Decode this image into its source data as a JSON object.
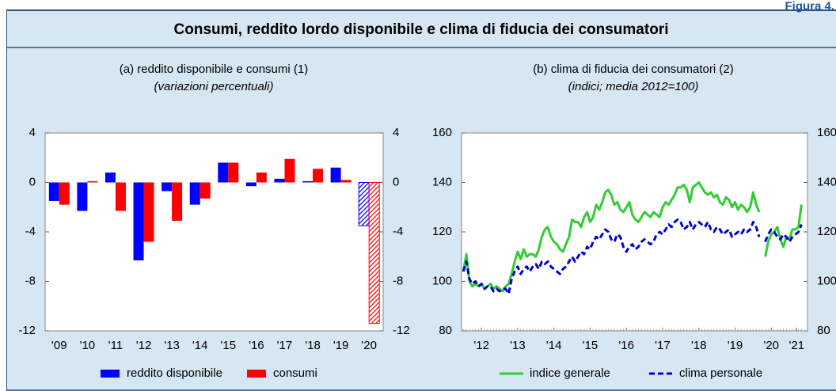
{
  "figure_label": "Figura 4.",
  "title": "Consumi, reddito lordo disponibile e clima di fiducia dei consumatori",
  "chart_data": [
    {
      "type": "bar",
      "title": "(a) reddito disponibile e consumi (1)",
      "subtitle": "(variazioni percentuali)",
      "categories": [
        "'09",
        "'10",
        "'11",
        "'12",
        "'13",
        "'14",
        "'15",
        "'16",
        "'17",
        "'18",
        "'19",
        "'20"
      ],
      "series": [
        {
          "name": "reddito disponibile",
          "color": "#0000ff",
          "values": [
            -1.5,
            -2.3,
            0.8,
            -6.3,
            -0.7,
            -1.8,
            1.6,
            -0.3,
            0.3,
            0.1,
            1.2,
            -3.5
          ],
          "hatch": [
            false,
            false,
            false,
            false,
            false,
            false,
            false,
            false,
            false,
            false,
            false,
            true
          ]
        },
        {
          "name": "consumi",
          "color": "#ff0000",
          "values": [
            -1.8,
            0.1,
            -2.3,
            -4.8,
            -3.1,
            -1.3,
            1.6,
            0.8,
            1.9,
            1.1,
            0.2,
            -11.4
          ],
          "hatch": [
            false,
            false,
            false,
            false,
            false,
            false,
            false,
            false,
            false,
            false,
            false,
            true
          ]
        }
      ],
      "ylim": [
        -12,
        4
      ],
      "yticks": [
        -12,
        -8,
        -4,
        0,
        4
      ],
      "y_right": true
    },
    {
      "type": "line",
      "title": "(b) clima di fiducia dei consumatori (2)",
      "subtitle": "(indici; media 2012=100)",
      "x": [
        2012,
        2012.083,
        2012.167,
        2012.25,
        2012.333,
        2012.417,
        2012.5,
        2012.583,
        2012.667,
        2012.75,
        2012.833,
        2012.917,
        2013,
        2013.083,
        2013.167,
        2013.25,
        2013.333,
        2013.417,
        2013.5,
        2013.583,
        2013.667,
        2013.75,
        2013.833,
        2013.917,
        2014,
        2014.083,
        2014.167,
        2014.25,
        2014.333,
        2014.417,
        2014.5,
        2014.583,
        2014.667,
        2014.75,
        2014.833,
        2014.917,
        2015,
        2015.083,
        2015.167,
        2015.25,
        2015.333,
        2015.417,
        2015.5,
        2015.583,
        2015.667,
        2015.75,
        2015.833,
        2015.917,
        2016,
        2016.083,
        2016.167,
        2016.25,
        2016.333,
        2016.417,
        2016.5,
        2016.583,
        2016.667,
        2016.75,
        2016.833,
        2016.917,
        2017,
        2017.083,
        2017.167,
        2017.25,
        2017.333,
        2017.417,
        2017.5,
        2017.583,
        2017.667,
        2017.75,
        2017.833,
        2017.917,
        2018,
        2018.083,
        2018.167,
        2018.25,
        2018.333,
        2018.417,
        2018.5,
        2018.583,
        2018.667,
        2018.75,
        2018.833,
        2018.917,
        2019,
        2019.083,
        2019.167,
        2019.25,
        2019.333,
        2019.417,
        2019.5,
        2019.583,
        2019.667,
        2019.75,
        2019.833,
        2019.917,
        2020,
        2020.083,
        2020.167,
        2020.25,
        2020.333,
        2020.417,
        2020.5,
        2020.583,
        2020.667,
        2020.75,
        2020.833,
        2020.917,
        2021,
        2021.083,
        2021.167,
        2021.25,
        2021.333
      ],
      "series": [
        {
          "name": "indice generale",
          "color": "#33cc33",
          "dash": false,
          "values": [
            104,
            111,
            100,
            98,
            99,
            98,
            99,
            97,
            98,
            99,
            97,
            98,
            97,
            96,
            98,
            99,
            103,
            108,
            112,
            109,
            113,
            110,
            111,
            111,
            110,
            113,
            118,
            121,
            122,
            118,
            116,
            115,
            113,
            112,
            115,
            118,
            125,
            124,
            124,
            122,
            126,
            128,
            124,
            126,
            131,
            129,
            132,
            136,
            137,
            135,
            131,
            132,
            129,
            128,
            130,
            132,
            127,
            125,
            124,
            126,
            128,
            127,
            126,
            128,
            127,
            126,
            130,
            132,
            131,
            133,
            135,
            138,
            138,
            139,
            137,
            132,
            138,
            139,
            140,
            138,
            136,
            135,
            136,
            134,
            135,
            132,
            131,
            134,
            133,
            130,
            132,
            129,
            131,
            130,
            128,
            130,
            136,
            131,
            128,
            null,
            110,
            116,
            119,
            120,
            122,
            117,
            114,
            118,
            117,
            121,
            121,
            122,
            131
          ]
        },
        {
          "name": "clima personale",
          "color": "#0000cc",
          "dash": true,
          "values": [
            104,
            108,
            101,
            99,
            100,
            98,
            99,
            97,
            98,
            98,
            96,
            97,
            96,
            97,
            97,
            95,
            101,
            104,
            106,
            103,
            105,
            106,
            104,
            106,
            107,
            105,
            108,
            107,
            108,
            106,
            105,
            104,
            103,
            105,
            106,
            108,
            110,
            108,
            110,
            112,
            111,
            114,
            113,
            116,
            118,
            117,
            119,
            121,
            120,
            117,
            116,
            119,
            118,
            114,
            112,
            114,
            115,
            113,
            114,
            116,
            117,
            116,
            115,
            116,
            119,
            120,
            119,
            121,
            123,
            122,
            124,
            125,
            124,
            121,
            122,
            124,
            121,
            123,
            124,
            123,
            122,
            124,
            121,
            120,
            122,
            121,
            119,
            120,
            121,
            118,
            119,
            120,
            119,
            121,
            120,
            121,
            124,
            122,
            118,
            null,
            116,
            119,
            121,
            120,
            118,
            117,
            119,
            118,
            116,
            118,
            119,
            120,
            123
          ]
        }
      ],
      "xlim": [
        2011.95,
        2021.5
      ],
      "xticks": [
        {
          "value": 2012.5,
          "label": "'12"
        },
        {
          "value": 2013.5,
          "label": "'13"
        },
        {
          "value": 2014.5,
          "label": "'14"
        },
        {
          "value": 2015.5,
          "label": "'15"
        },
        {
          "value": 2016.5,
          "label": "'16"
        },
        {
          "value": 2017.5,
          "label": "'17"
        },
        {
          "value": 2018.5,
          "label": "'18"
        },
        {
          "value": 2019.5,
          "label": "'19"
        },
        {
          "value": 2020.5,
          "label": "'20"
        },
        {
          "value": 2021.2,
          "label": "'21"
        }
      ],
      "ylim": [
        80,
        160
      ],
      "yticks": [
        80,
        100,
        120,
        140,
        160
      ],
      "y_right": true
    }
  ]
}
